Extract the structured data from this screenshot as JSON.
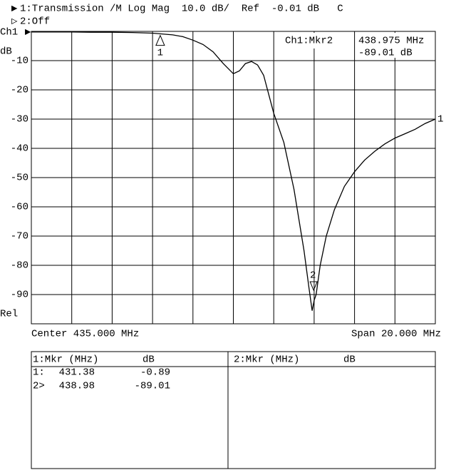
{
  "chart_data": {
    "type": "line",
    "header": "1:Transmission /M Log Mag  10.0 dB/  Ref  -0.01 dB   C",
    "channel2": "2:Off",
    "channel_label": "Ch1",
    "y_unit": "dB",
    "reference_label": "Rel",
    "center_label": "Center 435.000 MHz",
    "span_label": "Span 20.000 MHz",
    "active_marker": {
      "name": "Ch1:Mkr2",
      "frequency": "438.975 MHz",
      "level": "-89.01 dB"
    },
    "trace_label": "1",
    "xlim": [
      425,
      445
    ],
    "xticks": [
      425,
      427,
      429,
      431,
      433,
      435,
      437,
      439,
      441,
      443,
      445
    ],
    "ylim": [
      -100,
      0
    ],
    "yticks": [
      -10,
      -20,
      -30,
      -40,
      -50,
      -60,
      -70,
      -80,
      -90
    ],
    "grid": true,
    "color": "#000000",
    "x": [
      425,
      426,
      427,
      428,
      429,
      430,
      431,
      432,
      432.5,
      433,
      433.5,
      434,
      434.5,
      435,
      435.3,
      435.6,
      435.9,
      436.2,
      436.5,
      437,
      437.5,
      438,
      438.5,
      438.75,
      438.9,
      439,
      439.1,
      439.3,
      439.6,
      440,
      440.5,
      441,
      441.5,
      442,
      442.5,
      443,
      443.5,
      444,
      444.5,
      445
    ],
    "values": [
      -0.2,
      -0.2,
      -0.2,
      -0.3,
      -0.3,
      -0.4,
      -0.6,
      -1.2,
      -1.8,
      -3,
      -4.5,
      -7,
      -11,
      -14.5,
      -13.5,
      -11,
      -10.3,
      -11.5,
      -15,
      -28,
      -38,
      -54,
      -75,
      -88,
      -95.5,
      -92,
      -90,
      -80,
      -70,
      -61,
      -53,
      -48,
      -44,
      -41,
      -38.5,
      -36.5,
      -35,
      -33.5,
      -31.5,
      -30
    ],
    "markers": [
      {
        "label": "1",
        "x": 431.38,
        "y": -0.89,
        "side": "below"
      },
      {
        "label": "2",
        "x": 438.975,
        "y": -89.01,
        "side": "above"
      }
    ]
  },
  "table": {
    "columns": [
      {
        "title": "1:Mkr (MHz)",
        "unit": "dB",
        "rows": [
          [
            "1:",
            "431.38",
            "-0.89"
          ],
          [
            "2>",
            "438.98",
            "-89.01"
          ]
        ]
      },
      {
        "title": "2:Mkr (MHz)",
        "unit": "dB",
        "rows": []
      }
    ]
  }
}
